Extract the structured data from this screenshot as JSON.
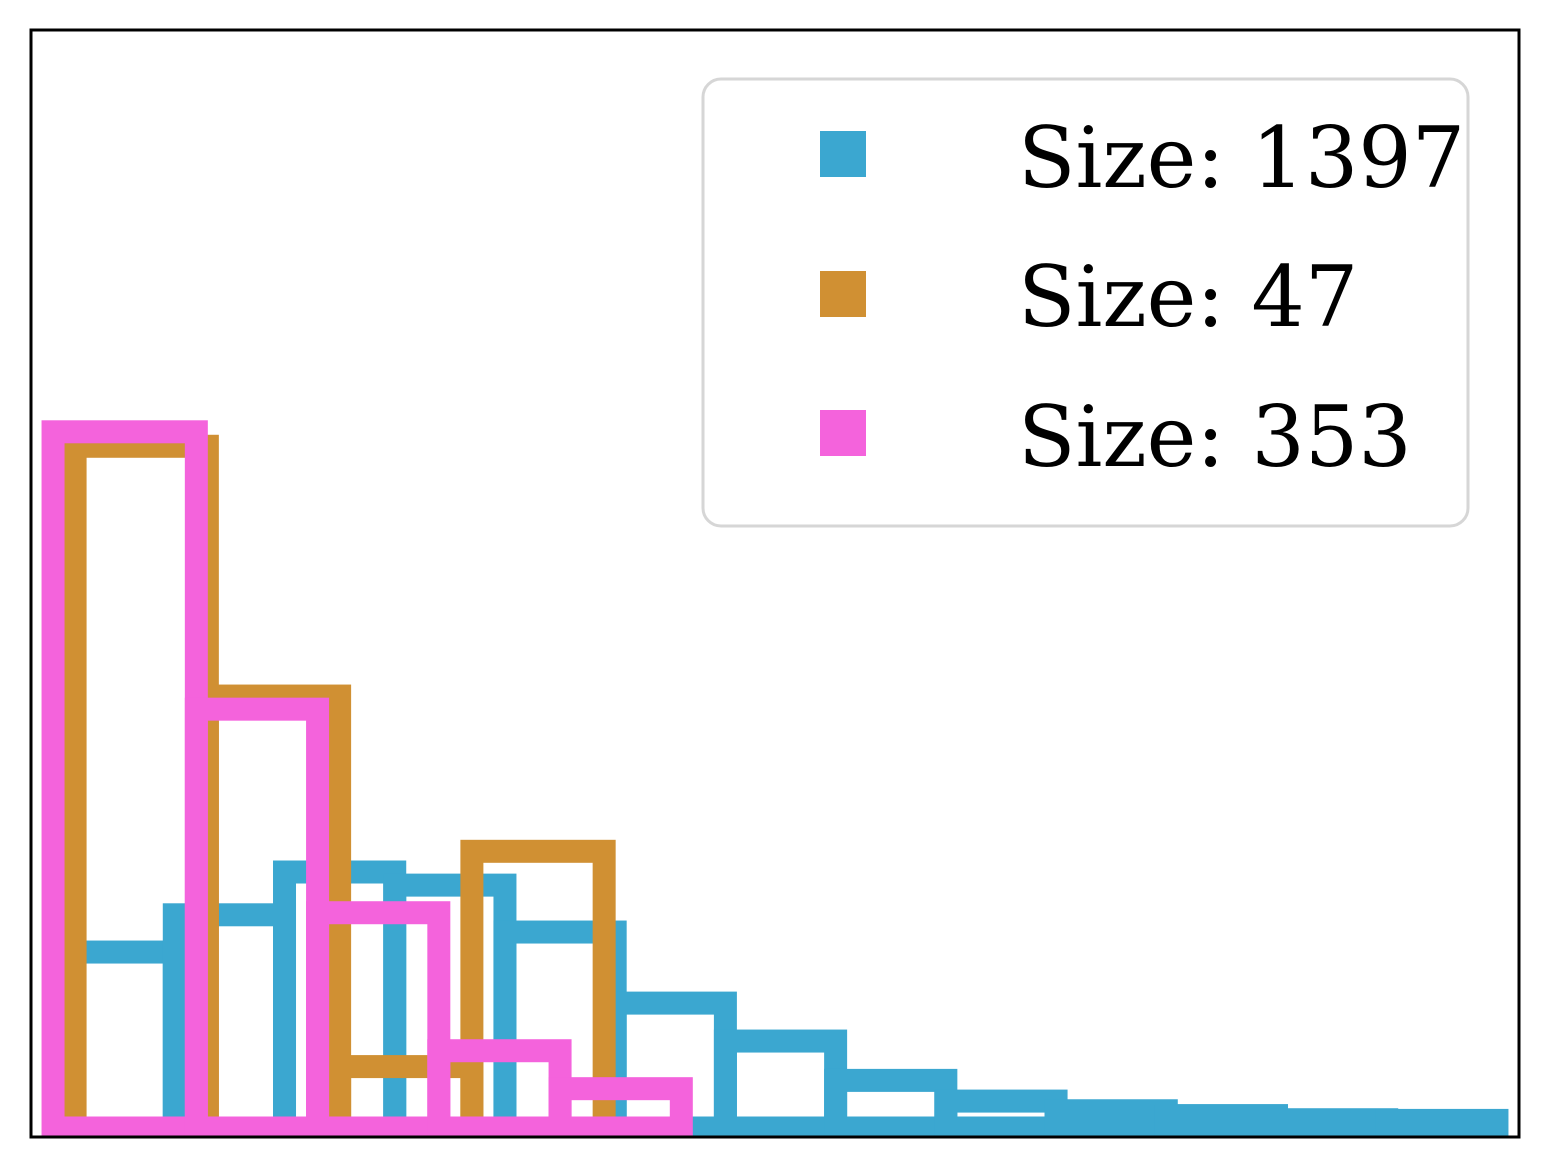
{
  "chart_data": {
    "type": "histogram",
    "style": "step-outline",
    "grid": false,
    "axis_ticks": false,
    "legend_position": "upper right",
    "xlim": [
      0,
      13.5
    ],
    "ylim": [
      0,
      100
    ],
    "series": [
      {
        "label": "Size: 1397",
        "color": "#3ba7d0",
        "edges": [
          0.3,
          1.3,
          2.3,
          3.3,
          4.3,
          5.3,
          6.3,
          7.3,
          8.3,
          9.3,
          10.3,
          11.3,
          12.3,
          13.3
        ],
        "values": [
          25.5,
          30.9,
          37.1,
          35.2,
          28.4,
          18.1,
          12.6,
          6.9,
          3.9,
          2.5,
          1.8,
          1.2,
          1.1
        ]
      },
      {
        "label": "Size: 47",
        "color": "#d09033",
        "edges": [
          0.4,
          1.6,
          2.8,
          4.0,
          5.2
        ],
        "values": [
          98.8,
          62.6,
          8.9,
          40.1
        ]
      },
      {
        "label": "Size: 353",
        "color": "#f463dc",
        "edges": [
          0.2,
          1.5,
          2.6,
          3.7,
          4.8,
          5.9
        ],
        "values": [
          100.9,
          60.7,
          31.2,
          11.2,
          5.7
        ]
      }
    ]
  }
}
